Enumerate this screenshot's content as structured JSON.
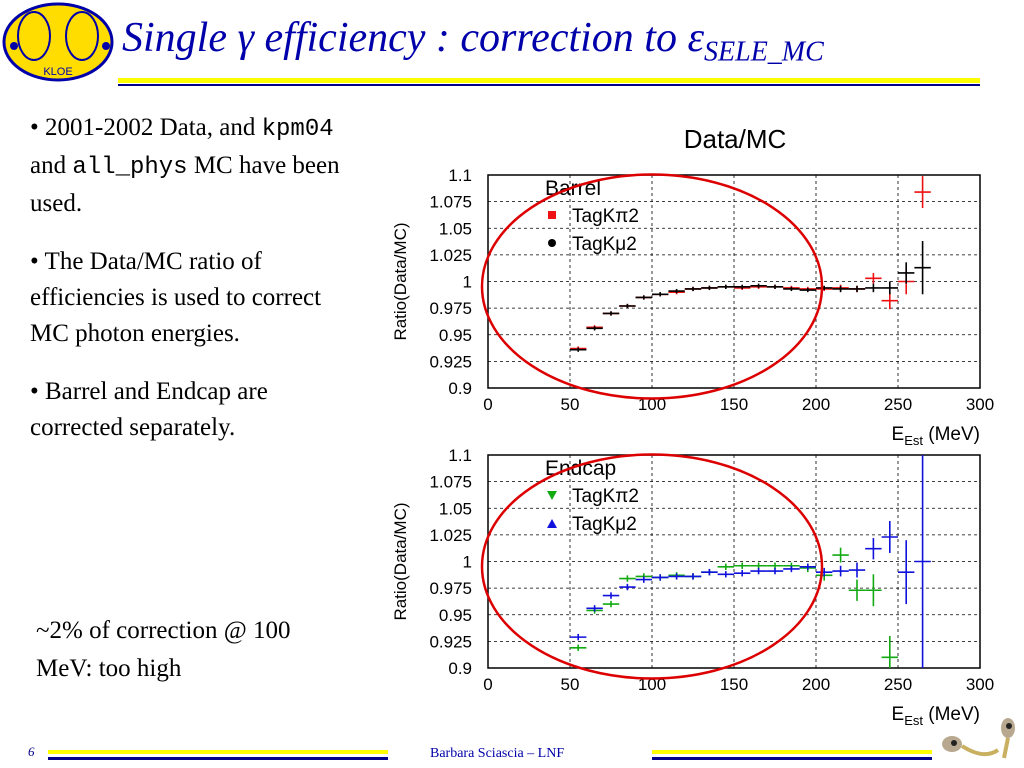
{
  "slide": {
    "title_main": "Single γ efficiency : correction to ε",
    "title_sub": "SELE_MC",
    "page_number": "6",
    "author": "Barbara Sciascia – LNF",
    "logo_text": "KLOE"
  },
  "bullets": [
    {
      "pre": "• 2001-2002 Data, and ",
      "code1": "kpm04",
      "mid": " and ",
      "code2": "all_phys",
      "post": " MC have been used."
    },
    {
      "text": "• The Data/MC ratio of efficiencies is used to correct MC photon energies."
    },
    {
      "text": "• Barrel and Endcap are corrected separately."
    }
  ],
  "note": "~2% of correction @ 100 MeV: too high",
  "colors": {
    "title": "#0000aa",
    "accent_line": "#ffff00",
    "rule": "#000088",
    "ellipse": "#dd0000",
    "barrel_kpi2": "#ee1111",
    "barrel_kmu2": "#000000",
    "endcap_kpi2": "#11aa11",
    "endcap_kmu2": "#1111dd"
  },
  "chart_data": {
    "title": "Data/MC",
    "panels": [
      {
        "type": "scatter",
        "label": "Barrel",
        "xlabel": "E",
        "xlabel_sub": "Est",
        "xlabel_unit": " (MeV)",
        "ylabel": "Ratio(Data/MC)",
        "xlim": [
          0,
          300
        ],
        "ylim": [
          0.9,
          1.1
        ],
        "xticks": [
          "0",
          "50",
          "100",
          "150",
          "200",
          "250",
          "300"
        ],
        "yticks": [
          "0.9",
          "0.925",
          "0.95",
          "0.975",
          "1",
          "1.025",
          "1.05",
          "1.075",
          "1.1"
        ],
        "grid": true,
        "series": [
          {
            "name": "TagKπ2",
            "color": "#ee1111",
            "marker": "square",
            "points": [
              [
                55,
                0.937,
                0.002
              ],
              [
                65,
                0.957,
                0.002
              ],
              [
                75,
                0.97,
                0.002
              ],
              [
                85,
                0.977,
                0.002
              ],
              [
                95,
                0.985,
                0.002
              ],
              [
                105,
                0.988,
                0.002
              ],
              [
                115,
                0.99,
                0.002
              ],
              [
                125,
                0.993,
                0.002
              ],
              [
                135,
                0.994,
                0.002
              ],
              [
                145,
                0.995,
                0.002
              ],
              [
                155,
                0.994,
                0.002
              ],
              [
                165,
                0.995,
                0.002
              ],
              [
                175,
                0.995,
                0.002
              ],
              [
                185,
                0.994,
                0.002
              ],
              [
                195,
                0.993,
                0.002
              ],
              [
                205,
                0.993,
                0.002
              ],
              [
                215,
                0.994,
                0.003
              ],
              [
                225,
                0.993,
                0.003
              ],
              [
                235,
                1.003,
                0.005
              ],
              [
                245,
                0.982,
                0.008
              ],
              [
                255,
                1.0,
                0.012
              ],
              [
                265,
                1.084,
                0.015
              ]
            ]
          },
          {
            "name": "TagKμ2",
            "color": "#000000",
            "marker": "circle",
            "points": [
              [
                55,
                0.936,
                0.002
              ],
              [
                65,
                0.956,
                0.002
              ],
              [
                75,
                0.97,
                0.002
              ],
              [
                85,
                0.977,
                0.002
              ],
              [
                95,
                0.985,
                0.002
              ],
              [
                105,
                0.988,
                0.002
              ],
              [
                115,
                0.991,
                0.002
              ],
              [
                125,
                0.993,
                0.002
              ],
              [
                135,
                0.994,
                0.002
              ],
              [
                145,
                0.995,
                0.002
              ],
              [
                155,
                0.995,
                0.002
              ],
              [
                165,
                0.996,
                0.002
              ],
              [
                175,
                0.995,
                0.002
              ],
              [
                185,
                0.993,
                0.002
              ],
              [
                195,
                0.992,
                0.002
              ],
              [
                205,
                0.994,
                0.002
              ],
              [
                215,
                0.993,
                0.003
              ],
              [
                225,
                0.993,
                0.003
              ],
              [
                235,
                0.994,
                0.004
              ],
              [
                245,
                0.994,
                0.006
              ],
              [
                255,
                1.008,
                0.01
              ],
              [
                265,
                1.013,
                0.025
              ]
            ]
          }
        ]
      },
      {
        "type": "scatter",
        "label": "Endcap",
        "xlabel": "E",
        "xlabel_sub": "Est",
        "xlabel_unit": " (MeV)",
        "ylabel": "Ratio(Data/MC)",
        "xlim": [
          0,
          300
        ],
        "ylim": [
          0.9,
          1.1
        ],
        "xticks": [
          "0",
          "50",
          "100",
          "150",
          "200",
          "250",
          "300"
        ],
        "yticks": [
          "0.9",
          "0.925",
          "0.95",
          "0.975",
          "1",
          "1.025",
          "1.05",
          "1.075",
          "1.1"
        ],
        "grid": true,
        "series": [
          {
            "name": "TagKπ2",
            "color": "#11aa11",
            "marker": "triangle-down",
            "points": [
              [
                55,
                0.919,
                0.003
              ],
              [
                65,
                0.954,
                0.003
              ],
              [
                75,
                0.96,
                0.003
              ],
              [
                85,
                0.984,
                0.003
              ],
              [
                95,
                0.986,
                0.003
              ],
              [
                105,
                0.985,
                0.003
              ],
              [
                115,
                0.987,
                0.003
              ],
              [
                125,
                0.986,
                0.003
              ],
              [
                135,
                0.99,
                0.003
              ],
              [
                145,
                0.995,
                0.003
              ],
              [
                155,
                0.996,
                0.003
              ],
              [
                165,
                0.996,
                0.003
              ],
              [
                175,
                0.996,
                0.003
              ],
              [
                185,
                0.996,
                0.003
              ],
              [
                195,
                0.994,
                0.004
              ],
              [
                205,
                0.987,
                0.005
              ],
              [
                215,
                1.006,
                0.007
              ],
              [
                225,
                0.973,
                0.01
              ],
              [
                235,
                0.973,
                0.015
              ],
              [
                245,
                0.91,
                0.02
              ]
            ]
          },
          {
            "name": "TagKμ2",
            "color": "#1111dd",
            "marker": "triangle-up",
            "points": [
              [
                55,
                0.929,
                0.003
              ],
              [
                65,
                0.956,
                0.003
              ],
              [
                75,
                0.968,
                0.003
              ],
              [
                85,
                0.976,
                0.003
              ],
              [
                95,
                0.983,
                0.003
              ],
              [
                105,
                0.985,
                0.003
              ],
              [
                115,
                0.986,
                0.003
              ],
              [
                125,
                0.986,
                0.003
              ],
              [
                135,
                0.99,
                0.003
              ],
              [
                145,
                0.988,
                0.003
              ],
              [
                155,
                0.989,
                0.003
              ],
              [
                165,
                0.991,
                0.003
              ],
              [
                175,
                0.991,
                0.003
              ],
              [
                185,
                0.993,
                0.003
              ],
              [
                195,
                0.995,
                0.003
              ],
              [
                205,
                0.99,
                0.004
              ],
              [
                215,
                0.991,
                0.005
              ],
              [
                225,
                0.992,
                0.007
              ],
              [
                235,
                1.012,
                0.01
              ],
              [
                245,
                1.023,
                0.015
              ],
              [
                255,
                0.99,
                0.03
              ],
              [
                265,
                1.0,
                0.11
              ]
            ]
          }
        ]
      }
    ]
  }
}
